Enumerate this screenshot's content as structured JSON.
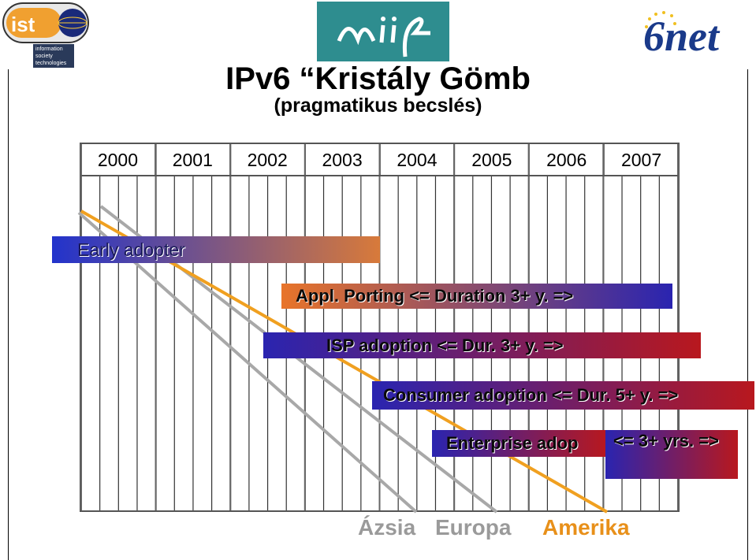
{
  "logos": {
    "ist": {
      "name": "ist",
      "lines": [
        "information",
        "society",
        "technologies"
      ]
    },
    "miif": {
      "name": "miif"
    },
    "sixnet": {
      "name": "6net"
    }
  },
  "title": "IPv6 “Kristály Gömb",
  "subtitle": "(pragmatikus becslés)",
  "years": [
    "2000",
    "2001",
    "2002",
    "2003",
    "2004",
    "2005",
    "2006",
    "2007"
  ],
  "phases": [
    {
      "label": "Early adopter",
      "gradient_from": "#2233cc",
      "gradient_to": "#d87a3a"
    },
    {
      "label": "Appl. Porting <= Duration 3+ y. =>",
      "gradient_from": "#e8742a",
      "gradient_to": "#2a24b0"
    },
    {
      "label": "ISP adoption <= Dur. 3+ y. =>",
      "gradient_from": "#2a24b0",
      "gradient_to": "#b8181e"
    },
    {
      "label": "Consumer adoption <= Dur. 5+ y. =>",
      "gradient_from": "#2a24b0",
      "gradient_to": "#b8181e"
    },
    {
      "label": "Enterprise adop",
      "gradient_from": "#2a24b0",
      "gradient_to": "#b8181e"
    },
    {
      "label": "<= 3+ yrs. =>",
      "gradient_from": "#2a24b0",
      "gradient_to": "#b8181e"
    }
  ],
  "regions": [
    {
      "label": "Ázsia",
      "color": "#9a9a9a"
    },
    {
      "label": "Europa",
      "color": "#9a9a9a"
    },
    {
      "label": "Amerika",
      "color": "#e8901a"
    }
  ],
  "line_colors": {
    "grey": "#a8a8a8",
    "orange": "#f0a020"
  }
}
